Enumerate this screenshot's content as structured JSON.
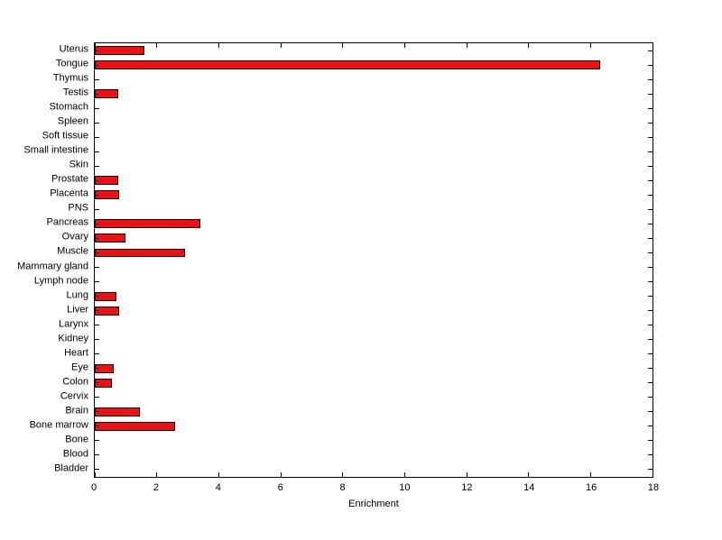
{
  "figure": {
    "background": "#ffffff",
    "text_color": "#000000"
  },
  "chart_data": {
    "type": "bar",
    "orientation": "horizontal",
    "title": "",
    "xlabel": "Enrichment",
    "ylabel": "",
    "xlim": [
      0,
      18
    ],
    "xticks": [
      0,
      2,
      4,
      6,
      8,
      10,
      12,
      14,
      16,
      18
    ],
    "grid": false,
    "legend": null,
    "bar_color": "#f01010",
    "edge_color": "#000000",
    "categories": [
      "Uterus",
      "Tongue",
      "Thymus",
      "Testis",
      "Stomach",
      "Spleen",
      "Soft tissue",
      "Small intestine",
      "Skin",
      "Prostate",
      "Placenta",
      "PNS",
      "Pancreas",
      "Ovary",
      "Muscle",
      "Mammary gland",
      "Lymph node",
      "Lung",
      "Liver",
      "Larynx",
      "Kidney",
      "Heart",
      "Eye",
      "Colon",
      "Cervix",
      "Brain",
      "Bone marrow",
      "Bone",
      "Blood",
      "Bladder"
    ],
    "values": [
      1.6,
      16.3,
      0,
      0.75,
      0,
      0,
      0,
      0,
      0,
      0.75,
      0.8,
      0,
      3.4,
      1.0,
      2.9,
      0,
      0,
      0.7,
      0.8,
      0,
      0,
      0,
      0.6,
      0.55,
      0,
      1.45,
      2.6,
      0,
      0,
      0
    ]
  }
}
